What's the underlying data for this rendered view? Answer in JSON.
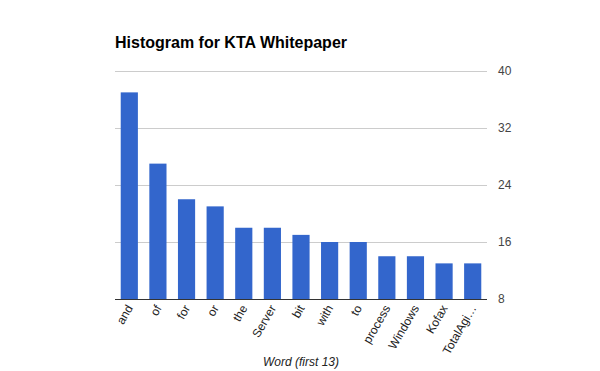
{
  "chart_data": {
    "type": "bar",
    "title": "Histogram for KTA Whitepaper",
    "x_label": "Word (first 13)",
    "categories": [
      "and",
      "of",
      "for",
      "or",
      "the",
      "Server",
      "bit",
      "with",
      "to",
      "process",
      "Windows",
      "Kofax",
      "TotalAgi…"
    ],
    "values": [
      37,
      27,
      22,
      21,
      18,
      18,
      17,
      16,
      16,
      14,
      14,
      13,
      13
    ],
    "color": "#3366cc",
    "ylim": [
      8,
      40
    ],
    "yticks": [
      8,
      16,
      24,
      32,
      40
    ],
    "grid": true
  }
}
